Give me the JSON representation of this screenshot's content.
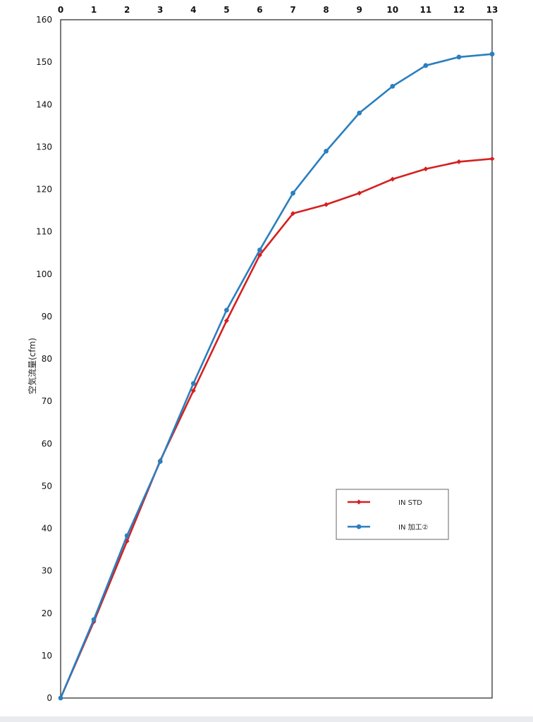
{
  "chart_data": {
    "type": "line",
    "title": "",
    "xlabel": "",
    "ylabel": "空気流量(cfm)",
    "x": [
      0,
      1,
      2,
      3,
      4,
      5,
      6,
      7,
      8,
      9,
      10,
      11,
      12,
      13
    ],
    "xlim": [
      0,
      13
    ],
    "ylim": [
      0,
      160
    ],
    "x_ticks": [
      "0",
      "1",
      "2",
      "3",
      "4",
      "5",
      "6",
      "7",
      "8",
      "9",
      "10",
      "11",
      "12",
      "13"
    ],
    "y_ticks": [
      "0",
      "10",
      "20",
      "30",
      "40",
      "50",
      "60",
      "70",
      "80",
      "90",
      "100",
      "110",
      "120",
      "130",
      "140",
      "150",
      "160"
    ],
    "x_axis_position": "top",
    "grid": true,
    "legend_position": "lower-right",
    "series": [
      {
        "name": "IN STD",
        "color": "#d62020",
        "values": [
          0,
          18,
          37,
          56,
          72.5,
          89,
          104.5,
          114.3,
          116.4,
          119.1,
          122.4,
          124.8,
          126.5,
          127.2
        ]
      },
      {
        "name": "IN 加工②",
        "color": "#2a7fbf",
        "values": [
          0,
          18.5,
          38.3,
          55.8,
          74.2,
          91.5,
          105.7,
          119.1,
          129,
          138,
          144.3,
          149.2,
          151.2,
          151.9
        ]
      }
    ]
  }
}
